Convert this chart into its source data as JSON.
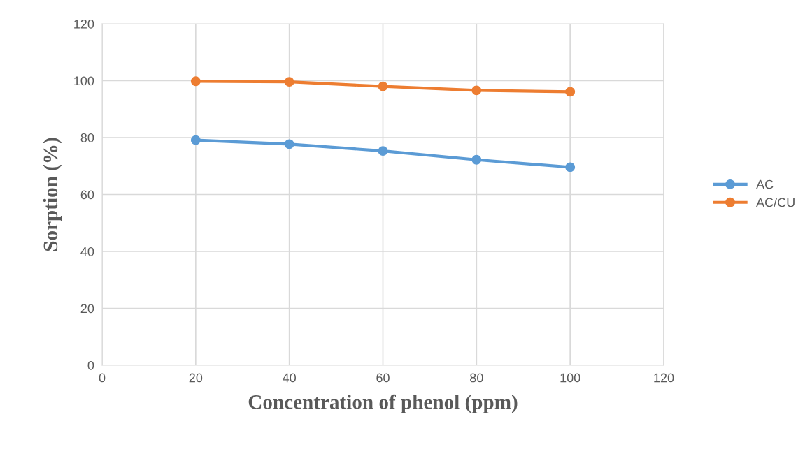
{
  "chart_data": {
    "type": "line",
    "xlabel": "Concentration of phenol (ppm)",
    "ylabel": "Sorption (%)",
    "x": [
      20,
      40,
      60,
      80,
      100
    ],
    "series": [
      {
        "name": "AC",
        "color": "#5b9bd5",
        "values": [
          79.1,
          77.7,
          75.3,
          72.2,
          69.6
        ]
      },
      {
        "name": "AC/CU",
        "color": "#ed7d31",
        "values": [
          99.8,
          99.6,
          98.0,
          96.6,
          96.1
        ]
      }
    ],
    "xlim": [
      0,
      120
    ],
    "xticks": [
      0,
      20,
      40,
      60,
      80,
      100,
      120
    ],
    "ylim": [
      0,
      120
    ],
    "yticks": [
      0,
      20,
      40,
      60,
      80,
      100,
      120
    ],
    "grid": true,
    "legend": "right",
    "marker": "circle",
    "line_style": "solid"
  }
}
